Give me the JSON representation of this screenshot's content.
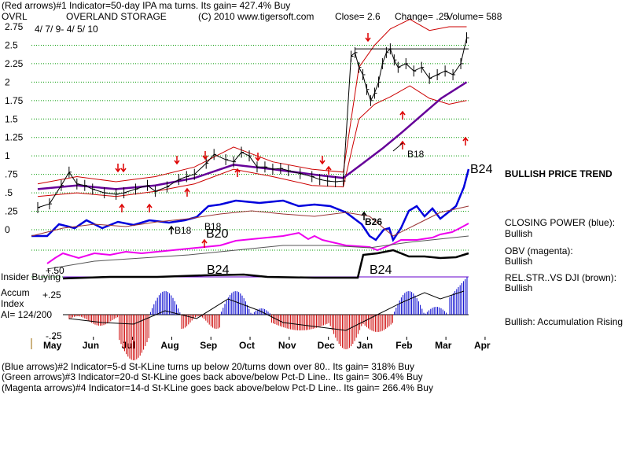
{
  "header": {
    "line1": "(Red arrows)#1 Indicator=50-day IPA ma turns.  Its gain= 427.4% Buy",
    "symbol": "OVRL",
    "company": "OVERLAND STORAGE",
    "copyright": "(C) 2010 www.tigersoft.com",
    "close": "Close=  2.6",
    "change": "Change= .25",
    "volume": "Volume= 588",
    "daterange": "4/ 7/ 9-  4/ 5/ 10"
  },
  "footer": {
    "line1": "(Blue arrows)#2 Indicator=5-d St-KLine turns up below 20/turns down over 80..  Its gain= 318% Buy",
    "line2": "(Green arrows)#3 Indicator=20-d St-KLine goes back above/below Pct-D Line..  Its gain= 306.4% Buy",
    "line3": "(Magenta arrows)#4 Indicator=14-d St-KLine goes back above/below Pct-D Line..  Its gain= 266.4% Buy"
  },
  "right_labels": {
    "trend": "BULLISH PRICE TREND",
    "closing_power_title": "CLOSING POWER (blue):",
    "closing_power_value": "Bullish",
    "obv_title": "OBV (magenta):",
    "obv_value": "Bullish",
    "relstr_title": "REL.STR..VS DJI (brown):",
    "relstr_value": "Bullish",
    "accum": "Bullish: Accumulation Rising"
  },
  "left_labels": {
    "insider": "Insider Buying",
    "plus50": "+.50",
    "plus25": "+.25",
    "accum": "Accum",
    "index": "Index",
    "ai": "AI= 124/200",
    "minus25": "-.25"
  },
  "annotations": {
    "b18_1": "B18",
    "b18_2": "B18",
    "b20": "B20",
    "b24_rs": "B24",
    "b24_rs2": "B24",
    "b24_top": "B24",
    "b18_top": "B18",
    "b26": "B26"
  },
  "colors": {
    "price": "#000000",
    "band": "#cc0000",
    "ma": "#660099",
    "closing_power": "#0000dd",
    "obv": "#ee00ee",
    "relstr": "#000000",
    "accum_pos": "#0000cc",
    "accum_neg": "#cc0000",
    "grid": "#009900",
    "arrow_red": "#dd0000"
  },
  "chart_data": {
    "type": "line",
    "title": "OVERLAND STORAGE",
    "x_tick_labels": [
      "May",
      "Jun",
      "Jul",
      "Aug",
      "Sep",
      "Oct",
      "Nov",
      "Dec",
      "Jan",
      "Feb",
      "Mar",
      "Apr"
    ],
    "y_tick_labels": [
      "2.75",
      "2.5",
      "2.25",
      "2",
      "1.75",
      "1.5",
      "1.25",
      "1",
      ".75",
      ".5",
      ".25",
      "0"
    ],
    "ylim": [
      0,
      2.75
    ],
    "grid": true,
    "series": [
      {
        "key": "price",
        "t": [
          0,
          0.3,
          0.6,
          0.8,
          1,
          1.2,
          1.4,
          1.7,
          2,
          2.2,
          2.5,
          2.8,
          3,
          3.3,
          3.6,
          3.8,
          4,
          4.3,
          4.5,
          4.8,
          5,
          5.2,
          5.4,
          5.6,
          5.8,
          6,
          6.2,
          6.4,
          6.7,
          7,
          7.2,
          7.4,
          7.6,
          7.8,
          8,
          8.1,
          8.2,
          8.3,
          8.4,
          8.5,
          8.6,
          8.7,
          8.8,
          8.9,
          9,
          9.1,
          9.2,
          9.4,
          9.6,
          9.8,
          10,
          10.2,
          10.4,
          10.6,
          10.8,
          10.95
        ],
        "values": [
          0.3,
          0.35,
          0.6,
          0.78,
          0.62,
          0.6,
          0.55,
          0.5,
          0.48,
          0.5,
          0.55,
          0.6,
          0.52,
          0.58,
          0.68,
          0.72,
          0.75,
          0.9,
          1.02,
          0.95,
          0.92,
          1.05,
          1.0,
          0.85,
          0.85,
          0.82,
          0.83,
          0.8,
          0.76,
          0.72,
          0.68,
          0.66,
          0.65,
          0.66,
          2.35,
          2.4,
          2.2,
          2.1,
          1.9,
          1.75,
          1.85,
          2.0,
          2.25,
          2.4,
          2.45,
          2.3,
          2.2,
          2.25,
          2.15,
          2.2,
          2.05,
          2.1,
          2.15,
          2.1,
          2.25,
          2.6
        ]
      },
      {
        "key": "band_upper",
        "t": [
          0,
          1,
          2,
          3,
          4,
          5,
          6,
          7,
          7.8,
          8.2,
          8.6,
          9,
          9.5,
          10,
          10.5,
          10.95
        ],
        "values": [
          0.62,
          0.72,
          0.65,
          0.72,
          0.85,
          1.12,
          0.92,
          0.82,
          0.78,
          2.2,
          2.5,
          2.72,
          2.85,
          2.7,
          2.75,
          2.75
        ]
      },
      {
        "key": "band_lower",
        "t": [
          0,
          1,
          2,
          3,
          4,
          5,
          6,
          7,
          7.8,
          8.2,
          8.6,
          9,
          9.5,
          10,
          10.5,
          10.95
        ],
        "values": [
          0.45,
          0.5,
          0.45,
          0.52,
          0.62,
          0.82,
          0.72,
          0.6,
          0.58,
          1.5,
          1.7,
          1.8,
          1.95,
          1.78,
          1.7,
          1.75
        ]
      },
      {
        "key": "ma50",
        "t": [
          0,
          1,
          2,
          3,
          4,
          5,
          6,
          7,
          7.8,
          8.3,
          8.8,
          9.3,
          9.8,
          10.3,
          10.95
        ],
        "values": [
          0.55,
          0.6,
          0.55,
          0.6,
          0.7,
          0.88,
          0.82,
          0.75,
          0.7,
          0.9,
          1.1,
          1.32,
          1.55,
          1.78,
          2.0
        ]
      }
    ]
  }
}
